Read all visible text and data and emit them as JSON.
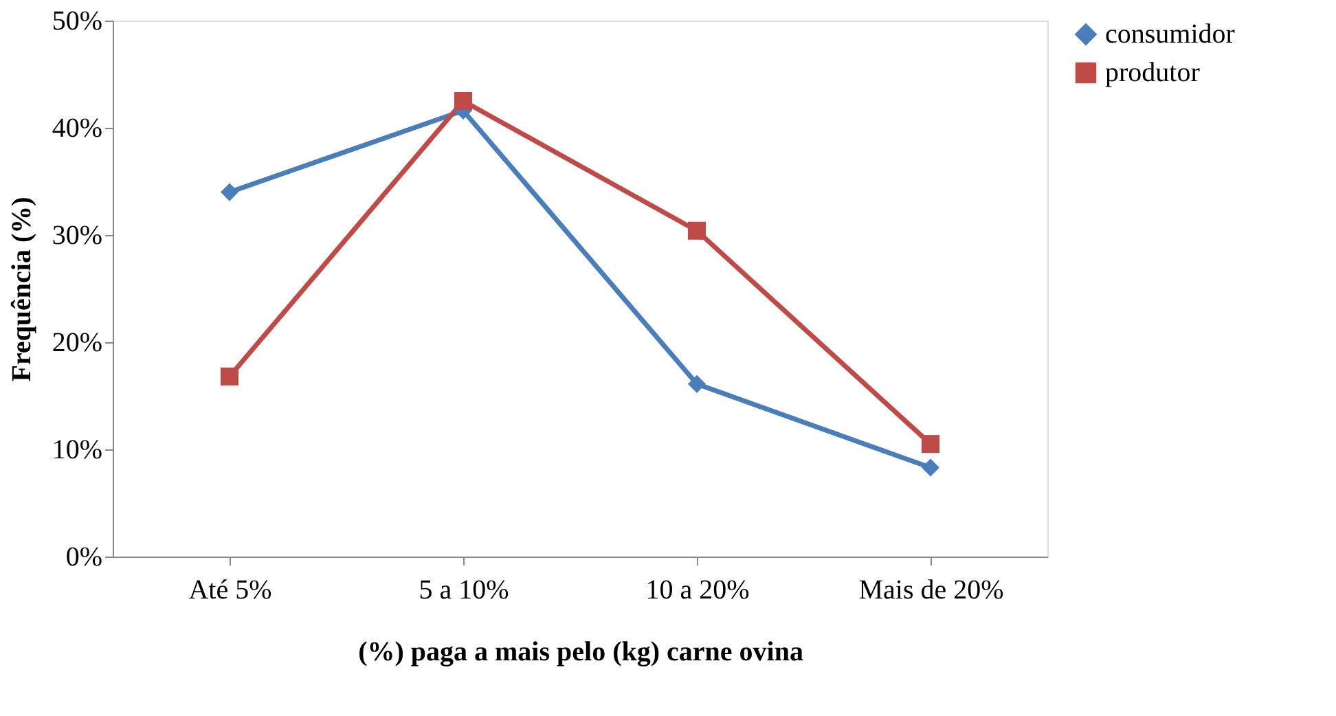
{
  "chart_data": {
    "type": "line",
    "xlabel": "(%) paga a mais pelo (kg) carne ovina",
    "ylabel": "Frequência (%)",
    "categories": [
      "Até 5%",
      "5 a 10%",
      "10 a 20%",
      "Mais de 20%"
    ],
    "series": [
      {
        "name": "consumidor",
        "color": "#4a7ebb",
        "marker": "diamond",
        "values": [
          34,
          41.6,
          16.1,
          8.3
        ]
      },
      {
        "name": "produtor",
        "color": "#be4b48",
        "marker": "square",
        "values": [
          16.8,
          42.5,
          30.4,
          10.5
        ]
      }
    ],
    "ylim": [
      0,
      50
    ],
    "yticks": [
      {
        "value": 0,
        "label": "0%"
      },
      {
        "value": 10,
        "label": "10%"
      },
      {
        "value": 20,
        "label": "20%"
      },
      {
        "value": 30,
        "label": "30%"
      },
      {
        "value": 40,
        "label": "40%"
      },
      {
        "value": 50,
        "label": "50%"
      }
    ],
    "grid": false,
    "legend": "right",
    "line_style": "solid"
  }
}
